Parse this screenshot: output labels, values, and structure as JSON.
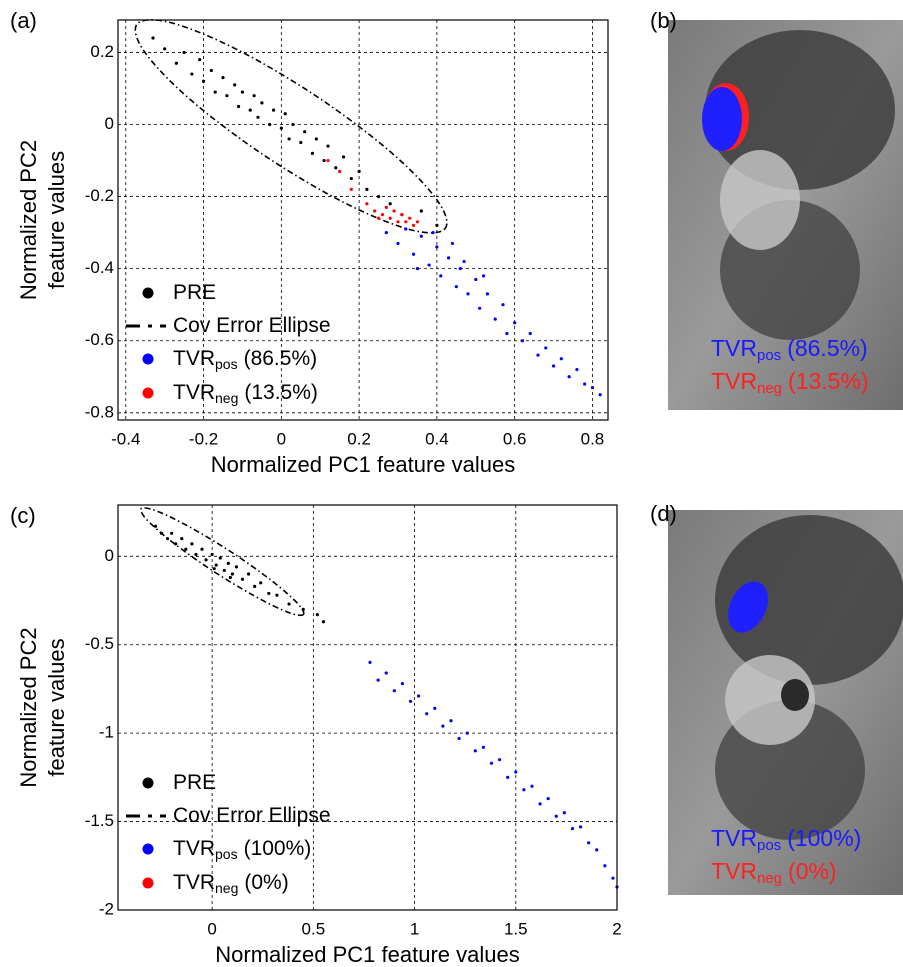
{
  "chart_data": [
    {
      "type": "scatter",
      "panel_label": "(a)",
      "xlabel": "Normalized PC1 feature values",
      "ylabel": [
        "Normalized PC2",
        "feature values"
      ],
      "xlim": [
        -0.42,
        0.84
      ],
      "ylim": [
        -0.82,
        0.29
      ],
      "xticks": [
        -0.4,
        -0.2,
        0,
        0.2,
        0.4,
        0.6,
        0.8
      ],
      "yticks": [
        0.2,
        0,
        -0.2,
        -0.4,
        -0.6,
        -0.8
      ],
      "grid": true,
      "legend": "lower left",
      "series": [
        {
          "name": "PRE",
          "color": "#000000",
          "x": [
            -0.3,
            -0.27,
            -0.25,
            -0.23,
            -0.21,
            -0.2,
            -0.18,
            -0.17,
            -0.15,
            -0.14,
            -0.12,
            -0.11,
            -0.1,
            -0.08,
            -0.07,
            -0.06,
            -0.05,
            -0.03,
            -0.02,
            0.0,
            0.01,
            0.02,
            0.03,
            0.05,
            0.06,
            0.08,
            0.09,
            0.11,
            0.12,
            0.14,
            0.16,
            0.18,
            0.2,
            0.22,
            0.25,
            0.28,
            0.31,
            0.36,
            0.4,
            -0.33
          ],
          "y": [
            0.21,
            0.17,
            0.2,
            0.14,
            0.18,
            0.12,
            0.15,
            0.09,
            0.13,
            0.08,
            0.11,
            0.05,
            0.09,
            0.04,
            0.08,
            0.02,
            0.06,
            0.0,
            0.04,
            -0.01,
            0.03,
            -0.04,
            0.0,
            -0.05,
            -0.02,
            -0.08,
            -0.04,
            -0.1,
            -0.06,
            -0.12,
            -0.09,
            -0.15,
            -0.13,
            -0.18,
            -0.2,
            -0.22,
            -0.25,
            -0.24,
            -0.28,
            0.24
          ]
        },
        {
          "name": "Cov Error Ellipse",
          "color": "#000000",
          "kind": "ellipse",
          "x": [
            0.42,
            0.402,
            0.284,
            0.095,
            -0.112,
            -0.282,
            -0.37,
            -0.352,
            -0.234,
            -0.045,
            0.162,
            0.332
          ],
          "y": [
            -0.29,
            -0.212,
            -0.079,
            0.075,
            0.207,
            0.282,
            0.28,
            0.202,
            0.069,
            -0.085,
            -0.217,
            -0.292
          ]
        },
        {
          "name": "TVR",
          "name_sub": "pos",
          "name_suffix": "(86.5%)",
          "color": "#0000ff",
          "x": [
            0.27,
            0.3,
            0.32,
            0.34,
            0.36,
            0.38,
            0.4,
            0.41,
            0.43,
            0.45,
            0.46,
            0.48,
            0.5,
            0.51,
            0.53,
            0.55,
            0.57,
            0.58,
            0.6,
            0.62,
            0.64,
            0.66,
            0.68,
            0.7,
            0.72,
            0.74,
            0.76,
            0.78,
            0.8,
            0.82,
            0.39,
            0.44,
            0.35,
            0.47,
            0.52
          ],
          "y": [
            -0.3,
            -0.33,
            -0.29,
            -0.36,
            -0.31,
            -0.39,
            -0.34,
            -0.42,
            -0.37,
            -0.45,
            -0.4,
            -0.47,
            -0.43,
            -0.51,
            -0.47,
            -0.54,
            -0.5,
            -0.58,
            -0.55,
            -0.6,
            -0.58,
            -0.64,
            -0.62,
            -0.67,
            -0.65,
            -0.7,
            -0.68,
            -0.72,
            -0.73,
            -0.75,
            -0.3,
            -0.33,
            -0.4,
            -0.38,
            -0.42
          ]
        },
        {
          "name": "TVR",
          "name_sub": "neg",
          "name_suffix": "(13.5%)",
          "color": "#ff0000",
          "x": [
            0.22,
            0.24,
            0.26,
            0.27,
            0.28,
            0.3,
            0.31,
            0.32,
            0.33,
            0.34,
            0.35,
            0.25,
            0.29,
            0.12,
            0.15,
            0.18
          ],
          "y": [
            -0.22,
            -0.24,
            -0.25,
            -0.23,
            -0.26,
            -0.27,
            -0.25,
            -0.27,
            -0.26,
            -0.28,
            -0.27,
            -0.26,
            -0.24,
            -0.1,
            -0.13,
            -0.18
          ]
        }
      ]
    },
    {
      "type": "scatter",
      "panel_label": "(c)",
      "xlabel": "Normalized PC1 feature values",
      "ylabel": [
        "Normalized PC2",
        "feature values"
      ],
      "xlim": [
        -0.465,
        2
      ],
      "ylim": [
        -2,
        0.29
      ],
      "xticks": [
        0,
        0.5,
        1,
        1.5,
        2
      ],
      "yticks": [
        0,
        -0.5,
        -1,
        -1.5,
        -2
      ],
      "grid": true,
      "legend": "lower left",
      "series": [
        {
          "name": "PRE",
          "color": "#000000",
          "x": [
            -0.25,
            -0.22,
            -0.2,
            -0.18,
            -0.15,
            -0.13,
            -0.1,
            -0.08,
            -0.05,
            -0.03,
            0.0,
            0.02,
            0.04,
            0.06,
            0.08,
            0.1,
            0.12,
            0.15,
            0.18,
            0.21,
            0.24,
            0.28,
            0.32,
            0.38,
            0.45,
            0.52,
            0.55,
            -0.28,
            0.01,
            0.09
          ],
          "y": [
            0.13,
            0.1,
            0.13,
            0.07,
            0.1,
            0.04,
            0.07,
            0.01,
            0.04,
            -0.02,
            0.01,
            -0.05,
            -0.01,
            -0.08,
            -0.04,
            -0.1,
            -0.06,
            -0.13,
            -0.1,
            -0.17,
            -0.15,
            -0.21,
            -0.22,
            -0.27,
            -0.3,
            -0.33,
            -0.37,
            0.17,
            -0.07,
            -0.12
          ]
        },
        {
          "name": "Cov Error Ellipse",
          "color": "#000000",
          "kind": "ellipse",
          "x": [
            0.45,
            0.421,
            0.293,
            0.1,
            -0.107,
            -0.271,
            -0.35,
            -0.321,
            -0.193,
            0.0,
            0.207,
            0.371
          ],
          "y": [
            -0.33,
            -0.265,
            -0.137,
            0.02,
            0.163,
            0.255,
            0.27,
            0.205,
            0.077,
            -0.08,
            -0.223,
            -0.315
          ]
        },
        {
          "name": "TVR",
          "name_sub": "pos",
          "name_suffix": "(100%)",
          "color": "#0000ff",
          "x": [
            0.78,
            0.82,
            0.86,
            0.9,
            0.94,
            0.98,
            1.02,
            1.06,
            1.1,
            1.14,
            1.18,
            1.22,
            1.26,
            1.3,
            1.34,
            1.38,
            1.42,
            1.46,
            1.5,
            1.54,
            1.58,
            1.62,
            1.66,
            1.7,
            1.74,
            1.78,
            1.82,
            1.86,
            1.9,
            1.94,
            1.98,
            2.0
          ],
          "y": [
            -0.6,
            -0.7,
            -0.66,
            -0.76,
            -0.72,
            -0.82,
            -0.79,
            -0.89,
            -0.86,
            -0.96,
            -0.93,
            -1.03,
            -1.0,
            -1.1,
            -1.08,
            -1.17,
            -1.15,
            -1.25,
            -1.22,
            -1.32,
            -1.3,
            -1.4,
            -1.37,
            -1.47,
            -1.45,
            -1.54,
            -1.53,
            -1.62,
            -1.66,
            -1.75,
            -1.82,
            -1.87
          ]
        },
        {
          "name": "TVR",
          "name_sub": "neg",
          "name_suffix": "(0%)",
          "color": "#ff0000",
          "x": [],
          "y": []
        }
      ]
    }
  ],
  "images": [
    {
      "panel_label": "(b)",
      "captions": [
        {
          "main": "TVR",
          "sub": "pos",
          "suffix": "(86.5%)"
        },
        {
          "main": "TVR",
          "sub": "neg",
          "suffix": "(13.5%)"
        }
      ]
    },
    {
      "panel_label": "(d)",
      "captions": [
        {
          "main": "TVR",
          "sub": "pos",
          "suffix": "(100%)"
        },
        {
          "main": "TVR",
          "sub": "neg",
          "suffix": "(0%)"
        }
      ]
    }
  ]
}
